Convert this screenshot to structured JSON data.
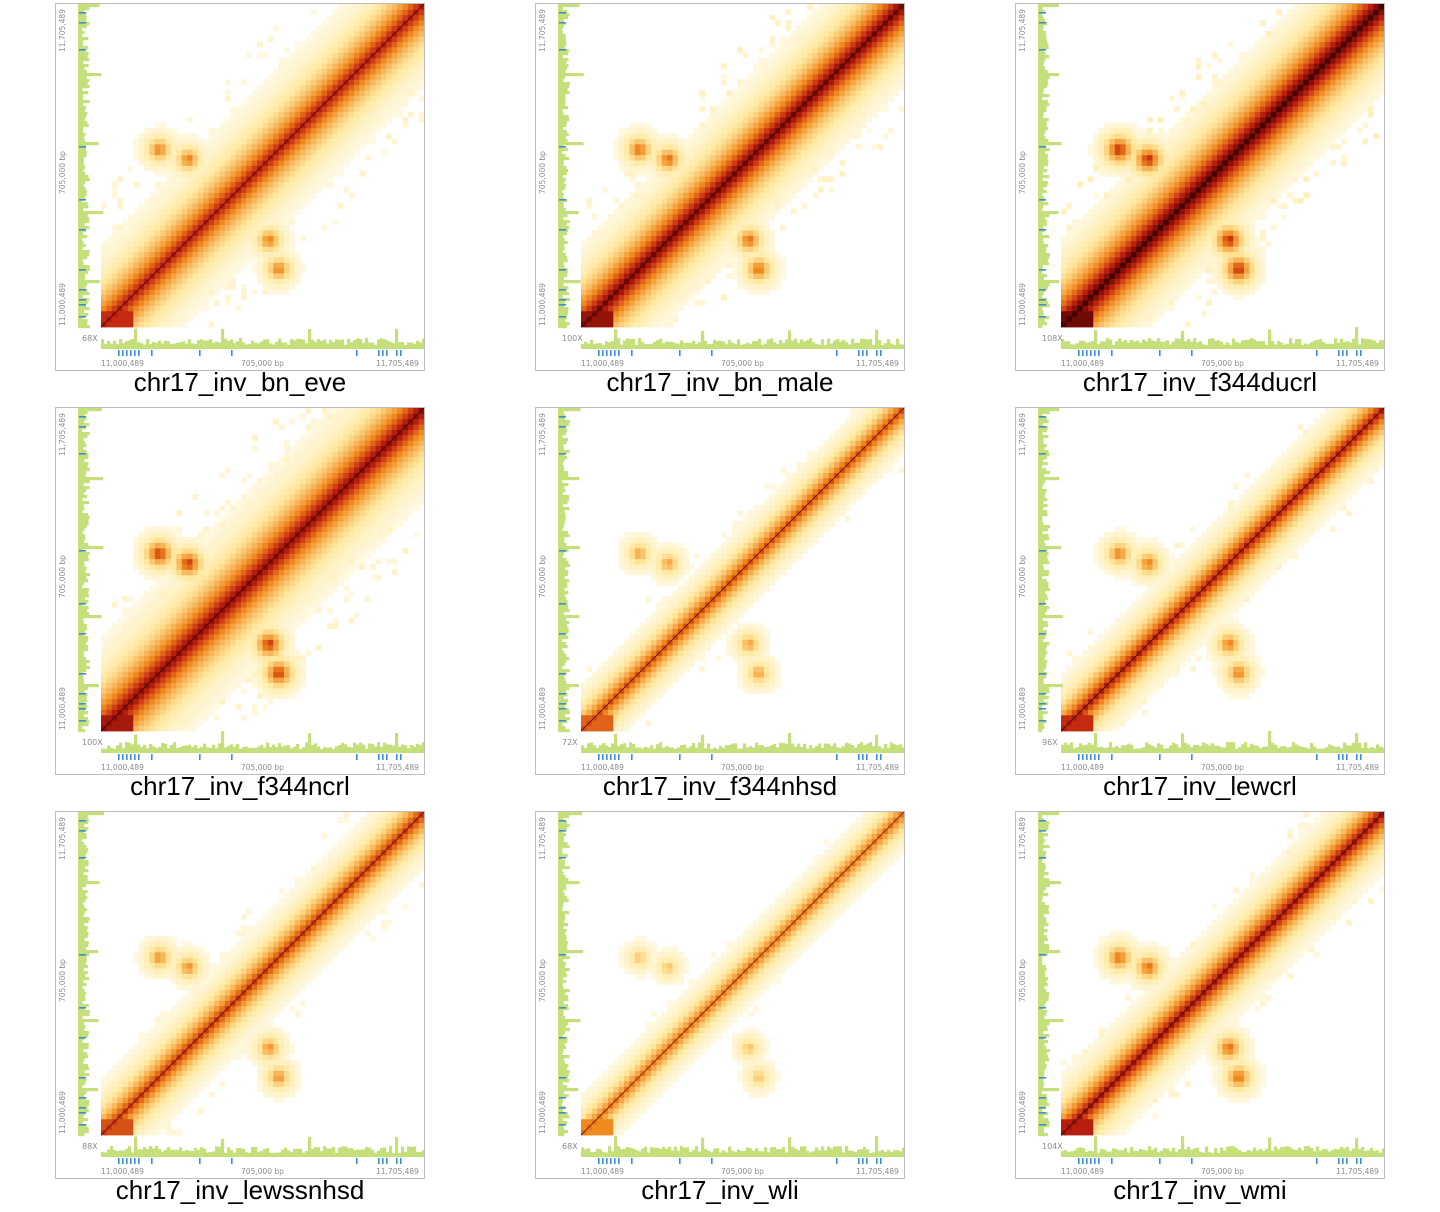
{
  "axis": {
    "start_label": "11,000,489",
    "mid_label": "705,000 bp",
    "end_label": "11,705,489"
  },
  "colors": {
    "coverage": "#c5df7a",
    "gene": "#3d8ed6",
    "heat_low": "#ffe9a0",
    "heat_mid": "#f08a1e",
    "heat_high": "#c02010",
    "heat_max": "#4a0000",
    "frame": "#bdbdbd"
  },
  "chart_data": [
    {
      "type": "heatmap",
      "title": "chr17_inv_bn_eve",
      "coverage": "68X",
      "signal": 0.75,
      "offdiag": 0.55,
      "spread": 1.0
    },
    {
      "type": "heatmap",
      "title": "chr17_inv_bn_male",
      "coverage": "100X",
      "signal": 0.9,
      "offdiag": 0.6,
      "spread": 0.95
    },
    {
      "type": "heatmap",
      "title": "chr17_inv_f344ducrl",
      "coverage": "108X",
      "signal": 1.0,
      "offdiag": 0.8,
      "spread": 1.0
    },
    {
      "type": "heatmap",
      "title": "chr17_inv_f344ncrl",
      "coverage": "100X",
      "signal": 0.85,
      "offdiag": 0.75,
      "spread": 1.1
    },
    {
      "type": "heatmap",
      "title": "chr17_inv_f344nhsd",
      "coverage": "72X",
      "signal": 0.6,
      "offdiag": 0.45,
      "spread": 0.5
    },
    {
      "type": "heatmap",
      "title": "chr17_inv_lewcrl",
      "coverage": "96X",
      "signal": 0.75,
      "offdiag": 0.55,
      "spread": 0.55
    },
    {
      "type": "heatmap",
      "title": "chr17_inv_lewssnhsd",
      "coverage": "88X",
      "signal": 0.65,
      "offdiag": 0.5,
      "spread": 0.6
    },
    {
      "type": "heatmap",
      "title": "chr17_inv_wli",
      "coverage": "68X",
      "signal": 0.5,
      "offdiag": 0.35,
      "spread": 0.4
    },
    {
      "type": "heatmap",
      "title": "chr17_inv_wmi",
      "coverage": "104X",
      "signal": 0.8,
      "offdiag": 0.6,
      "spread": 0.6
    }
  ]
}
